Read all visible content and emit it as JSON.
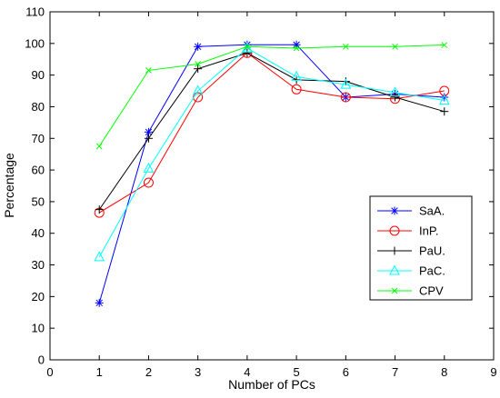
{
  "chart_data": {
    "type": "line",
    "title": "",
    "xlabel": "Number of PCs",
    "ylabel": "Percentage",
    "xlim": [
      0,
      9
    ],
    "ylim": [
      0,
      110
    ],
    "xticks": [
      0,
      1,
      2,
      3,
      4,
      5,
      6,
      7,
      8,
      9
    ],
    "yticks": [
      0,
      10,
      20,
      30,
      40,
      50,
      60,
      70,
      80,
      90,
      100,
      110
    ],
    "grid": false,
    "legend_position": "lower-right",
    "x": [
      1,
      2,
      3,
      4,
      5,
      6,
      7,
      8
    ],
    "series": [
      {
        "name": "SaA.",
        "color": "#0000ff",
        "marker": "asterisk",
        "values": [
          18,
          72,
          99,
          99.6,
          99.6,
          83,
          84,
          83
        ]
      },
      {
        "name": "InP.",
        "color": "#ff0000",
        "marker": "circle",
        "values": [
          46.5,
          56,
          83,
          97,
          85.5,
          83,
          82.5,
          85
        ]
      },
      {
        "name": "PaU.",
        "color": "#000000",
        "marker": "plus",
        "values": [
          47.5,
          70,
          92,
          97,
          88.5,
          88,
          83,
          78.5
        ]
      },
      {
        "name": "PaC.",
        "color": "#00ffff",
        "marker": "triangle",
        "values": [
          32.5,
          60.5,
          85,
          98.5,
          89.5,
          87,
          84.5,
          82
        ]
      },
      {
        "name": "CPV",
        "color": "#00ff00",
        "marker": "x",
        "values": [
          67.5,
          91.5,
          93.5,
          99,
          98.5,
          99,
          99,
          99.5
        ]
      }
    ]
  }
}
